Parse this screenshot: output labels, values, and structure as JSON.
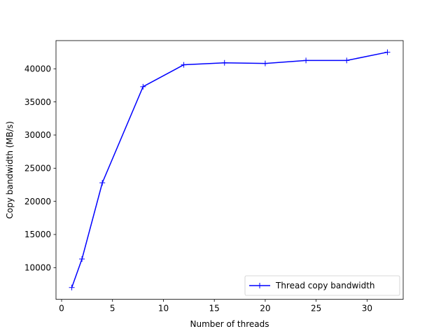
{
  "chart_data": {
    "type": "line",
    "xlabel": "Number of threads",
    "ylabel": "Copy bandwidth (MB/s)",
    "xlim": [
      -0.55,
      33.55
    ],
    "ylim": [
      5220,
      44250
    ],
    "xticks": [
      0,
      5,
      10,
      15,
      20,
      25,
      30
    ],
    "yticks": [
      10000,
      15000,
      20000,
      25000,
      30000,
      35000,
      40000
    ],
    "grid": false,
    "legend_position": "lower-right",
    "series": [
      {
        "name": "Thread copy bandwidth",
        "color": "#0000ff",
        "marker": "plus",
        "x": [
          1,
          2,
          4,
          8,
          12,
          16,
          20,
          24,
          28,
          32
        ],
        "y": [
          7000,
          11300,
          22800,
          37300,
          40600,
          40900,
          40800,
          41250,
          41250,
          42500
        ]
      }
    ]
  }
}
